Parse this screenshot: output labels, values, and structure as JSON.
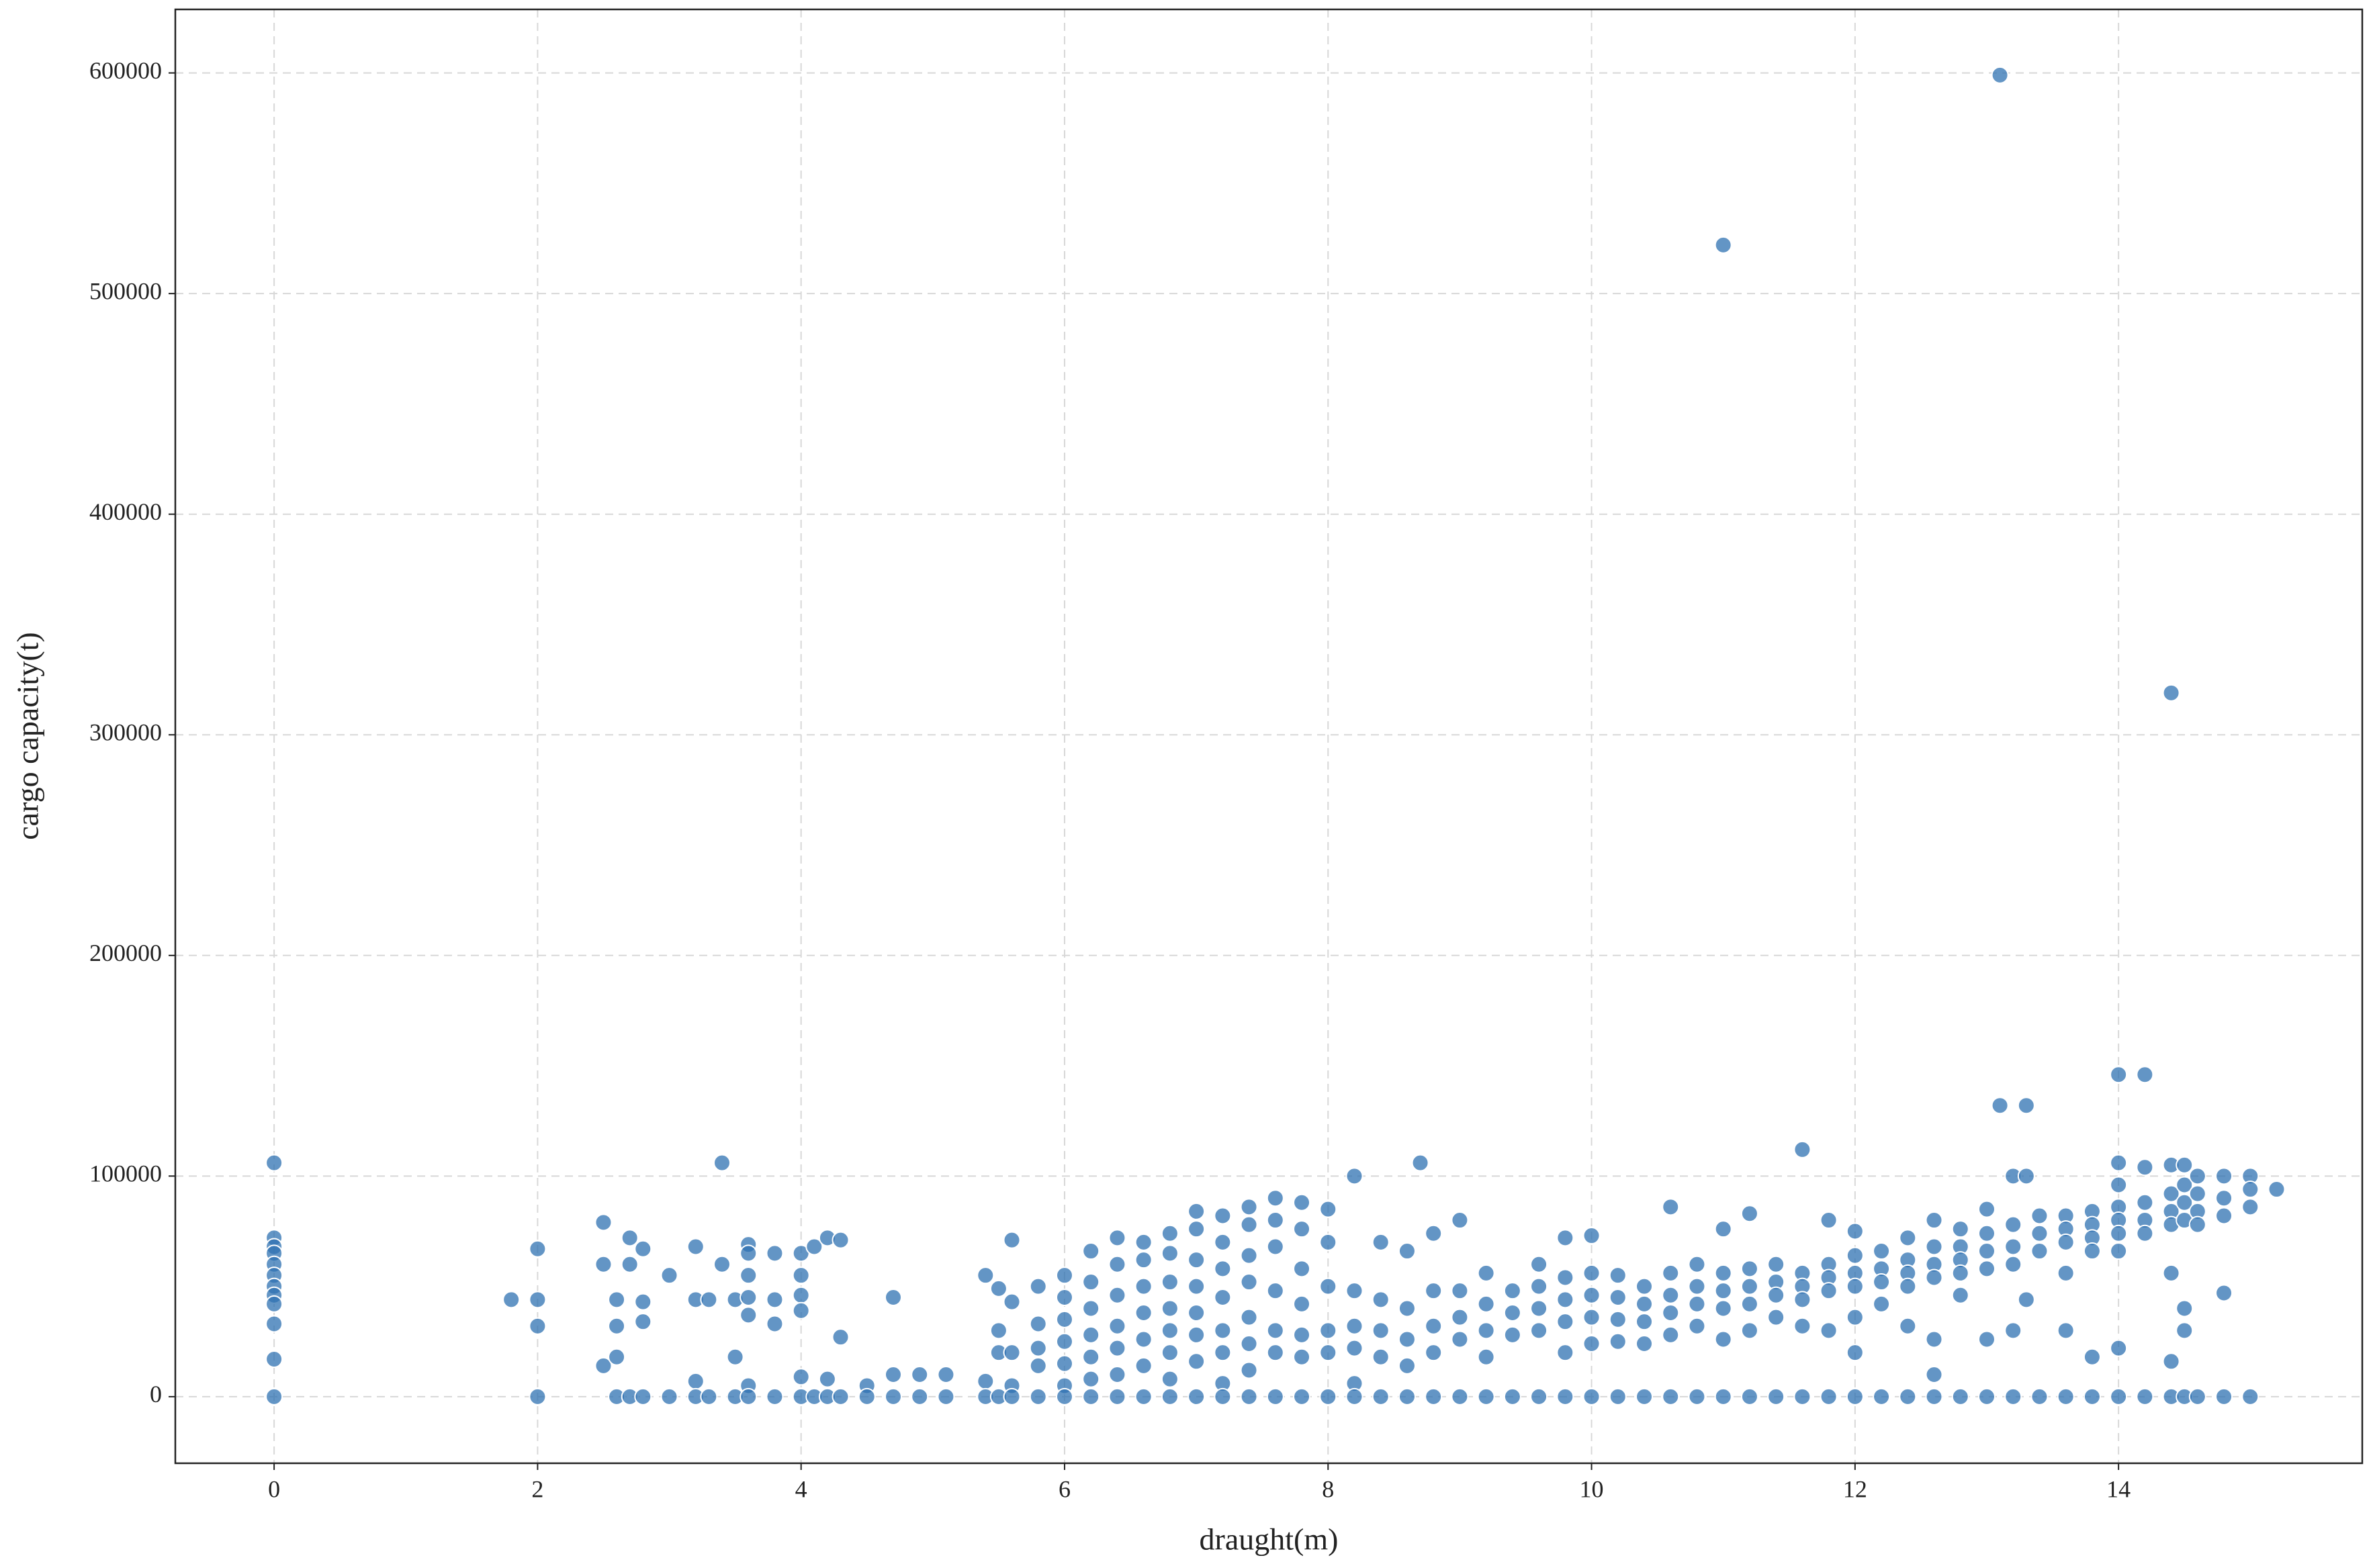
{
  "chart_data": {
    "type": "scatter",
    "x_label": "draught(m)",
    "y_label": "cargo capacity(t)",
    "xlim": [
      -0.75,
      15.85
    ],
    "ylim": [
      -30170,
      628800
    ],
    "xticks": [
      0,
      2,
      4,
      6,
      8,
      10,
      12,
      14
    ],
    "yticks": [
      0,
      100000,
      200000,
      300000,
      400000,
      500000,
      600000
    ],
    "grid": true,
    "series": [
      {
        "color": "#2f72b2",
        "x": [
          0,
          0,
          0,
          0,
          0,
          0,
          0,
          0,
          0,
          0,
          0,
          0,
          1.8,
          2,
          2,
          2,
          2,
          2.5,
          2.5,
          2.5,
          2.6,
          2.6,
          2.6,
          2.6,
          2.7,
          2.7,
          2.7,
          2.8,
          2.8,
          2.8,
          2.8,
          3,
          3,
          3.2,
          3.2,
          3.2,
          3.2,
          3.3,
          3.3,
          3.4,
          3.4,
          3.5,
          3.5,
          3.5,
          3.6,
          3.6,
          3.6,
          3.6,
          3.6,
          3.6,
          3.6,
          3.8,
          3.8,
          3.8,
          3.8,
          4,
          4,
          4,
          4,
          4,
          4,
          4.1,
          4.1,
          4.2,
          4.2,
          4.2,
          4.3,
          4.3,
          4.3,
          4.5,
          4.5,
          4.7,
          4.7,
          4.7,
          4.9,
          4.9,
          5.1,
          5.1,
          5.4,
          5.4,
          5.4,
          5.5,
          5.5,
          5.5,
          5.5,
          5.6,
          5.6,
          5.6,
          5.6,
          5.6,
          5.8,
          5.8,
          5.8,
          5.8,
          5.8,
          6,
          6,
          6,
          6,
          6,
          6,
          6,
          6.2,
          6.2,
          6.2,
          6.2,
          6.2,
          6.2,
          6.2,
          6.4,
          6.4,
          6.4,
          6.4,
          6.4,
          6.4,
          6.4,
          6.6,
          6.6,
          6.6,
          6.6,
          6.6,
          6.6,
          6.6,
          6.8,
          6.8,
          6.8,
          6.8,
          6.8,
          6.8,
          6.8,
          6.8,
          7,
          7,
          7,
          7,
          7,
          7,
          7,
          7,
          7.2,
          7.2,
          7.2,
          7.2,
          7.2,
          7.2,
          7.2,
          7.2,
          7.4,
          7.4,
          7.4,
          7.4,
          7.4,
          7.4,
          7.4,
          7.4,
          7.6,
          7.6,
          7.6,
          7.6,
          7.6,
          7.6,
          7.6,
          7.8,
          7.8,
          7.8,
          7.8,
          7.8,
          7.8,
          7.8,
          8,
          8,
          8,
          8,
          8,
          8,
          8.2,
          8.2,
          8.2,
          8.2,
          8.2,
          8.2,
          8.4,
          8.4,
          8.4,
          8.4,
          8.4,
          8.6,
          8.6,
          8.6,
          8.6,
          8.6,
          8.7,
          8.8,
          8.8,
          8.8,
          8.8,
          8.8,
          9,
          9,
          9,
          9,
          9,
          9.2,
          9.2,
          9.2,
          9.2,
          9.2,
          9.4,
          9.4,
          9.4,
          9.4,
          9.6,
          9.6,
          9.6,
          9.6,
          9.6,
          9.8,
          9.8,
          9.8,
          9.8,
          9.8,
          9.8,
          10,
          10,
          10,
          10,
          10,
          10,
          10.2,
          10.2,
          10.2,
          10.2,
          10.2,
          10.4,
          10.4,
          10.4,
          10.4,
          10.4,
          10.6,
          10.6,
          10.6,
          10.6,
          10.6,
          10.6,
          10.8,
          10.8,
          10.8,
          10.8,
          10.8,
          11,
          11,
          11,
          11,
          11,
          11,
          11,
          11.2,
          11.2,
          11.2,
          11.2,
          11.2,
          11.2,
          11.4,
          11.4,
          11.4,
          11.4,
          11.4,
          11.6,
          11.6,
          11.6,
          11.6,
          11.6,
          11.6,
          11.8,
          11.8,
          11.8,
          11.8,
          11.8,
          11.8,
          12,
          12,
          12,
          12,
          12,
          12,
          12,
          12.2,
          12.2,
          12.2,
          12.2,
          12.2,
          12.4,
          12.4,
          12.4,
          12.4,
          12.4,
          12.4,
          12.6,
          12.6,
          12.6,
          12.6,
          12.6,
          12.6,
          12.6,
          12.8,
          12.8,
          12.8,
          12.8,
          12.8,
          12.8,
          13,
          13,
          13,
          13,
          13,
          13,
          13.1,
          13.1,
          13.2,
          13.2,
          13.2,
          13.2,
          13.2,
          13.2,
          13.3,
          13.3,
          13.3,
          13.4,
          13.4,
          13.4,
          13.4,
          13.6,
          13.6,
          13.6,
          13.6,
          13.6,
          13.6,
          13.8,
          13.8,
          13.8,
          13.8,
          13.8,
          13.8,
          14,
          14,
          14,
          14,
          14,
          14,
          14,
          14,
          14,
          14.2,
          14.2,
          14.2,
          14.2,
          14.2,
          14.2,
          14.4,
          14.4,
          14.4,
          14.4,
          14.4,
          14.4,
          14.4,
          14.4,
          14.5,
          14.5,
          14.5,
          14.5,
          14.5,
          14.5,
          14.5,
          14.6,
          14.6,
          14.6,
          14.6,
          14.6,
          14.8,
          14.8,
          14.8,
          14.8,
          14.8,
          15,
          15,
          15,
          15,
          15.2
        ],
        "values": [
          106000,
          72000,
          68000,
          65000,
          60000,
          55000,
          50000,
          46000,
          42000,
          33000,
          17000,
          0,
          44000,
          67000,
          44000,
          32000,
          0,
          79000,
          60000,
          14000,
          44000,
          32000,
          18000,
          0,
          72000,
          60000,
          0,
          67000,
          43000,
          34000,
          0,
          55000,
          0,
          68000,
          44000,
          7000,
          0,
          44000,
          0,
          106000,
          60000,
          44000,
          18000,
          0,
          69000,
          65000,
          55000,
          45000,
          37000,
          5000,
          0,
          65000,
          44000,
          33000,
          0,
          65000,
          55000,
          46000,
          39000,
          9000,
          0,
          68000,
          0,
          72000,
          8000,
          0,
          71000,
          27000,
          0,
          5000,
          0,
          45000,
          10000,
          0,
          10000,
          0,
          10000,
          0,
          55000,
          7000,
          0,
          49000,
          30000,
          20000,
          0,
          71000,
          43000,
          20000,
          5000,
          0,
          50000,
          33000,
          22000,
          14000,
          0,
          55000,
          45000,
          35000,
          25000,
          15000,
          5000,
          0,
          66000,
          52000,
          40000,
          28000,
          18000,
          8000,
          0,
          72000,
          60000,
          46000,
          32000,
          22000,
          10000,
          0,
          70000,
          62000,
          50000,
          38000,
          26000,
          14000,
          0,
          74000,
          65000,
          52000,
          40000,
          30000,
          20000,
          8000,
          0,
          84000,
          76000,
          62000,
          50000,
          38000,
          28000,
          16000,
          0,
          82000,
          70000,
          58000,
          45000,
          30000,
          20000,
          6000,
          0,
          86000,
          78000,
          64000,
          52000,
          36000,
          24000,
          12000,
          0,
          90000,
          80000,
          68000,
          48000,
          30000,
          20000,
          0,
          88000,
          76000,
          58000,
          42000,
          28000,
          18000,
          0,
          85000,
          70000,
          50000,
          30000,
          20000,
          0,
          100000,
          48000,
          32000,
          22000,
          6000,
          0,
          70000,
          44000,
          30000,
          18000,
          0,
          66000,
          40000,
          26000,
          14000,
          0,
          106000,
          74000,
          48000,
          32000,
          20000,
          0,
          80000,
          48000,
          36000,
          26000,
          0,
          56000,
          42000,
          30000,
          18000,
          0,
          48000,
          38000,
          28000,
          0,
          60000,
          50000,
          40000,
          30000,
          0,
          72000,
          54000,
          44000,
          34000,
          20000,
          0,
          73000,
          56000,
          46000,
          36000,
          24000,
          0,
          55000,
          45000,
          35000,
          25000,
          0,
          50000,
          42000,
          34000,
          24000,
          0,
          86000,
          56000,
          46000,
          38000,
          28000,
          0,
          60000,
          50000,
          42000,
          32000,
          0,
          522000,
          76000,
          56000,
          48000,
          40000,
          26000,
          0,
          83000,
          58000,
          50000,
          42000,
          30000,
          0,
          60000,
          52000,
          46000,
          36000,
          0,
          112000,
          56000,
          50000,
          44000,
          32000,
          0,
          80000,
          60000,
          54000,
          48000,
          30000,
          0,
          75000,
          64000,
          56000,
          50000,
          36000,
          20000,
          0,
          66000,
          58000,
          52000,
          42000,
          0,
          72000,
          62000,
          56000,
          50000,
          32000,
          0,
          80000,
          68000,
          60000,
          54000,
          26000,
          10000,
          0,
          76000,
          68000,
          62000,
          56000,
          46000,
          0,
          85000,
          74000,
          66000,
          58000,
          26000,
          0,
          599000,
          132000,
          100000,
          78000,
          68000,
          60000,
          30000,
          0,
          132000,
          100000,
          44000,
          82000,
          74000,
          66000,
          0,
          82000,
          76000,
          70000,
          56000,
          30000,
          0,
          84000,
          78000,
          72000,
          66000,
          18000,
          0,
          146000,
          106000,
          96000,
          86000,
          80000,
          74000,
          66000,
          22000,
          0,
          146000,
          104000,
          88000,
          80000,
          74000,
          0,
          319000,
          105000,
          92000,
          84000,
          78000,
          56000,
          16000,
          0,
          105000,
          96000,
          88000,
          80000,
          40000,
          30000,
          0,
          100000,
          92000,
          84000,
          78000,
          0,
          100000,
          90000,
          82000,
          47000,
          0,
          100000,
          94000,
          86000,
          0,
          94000
        ]
      }
    ]
  }
}
